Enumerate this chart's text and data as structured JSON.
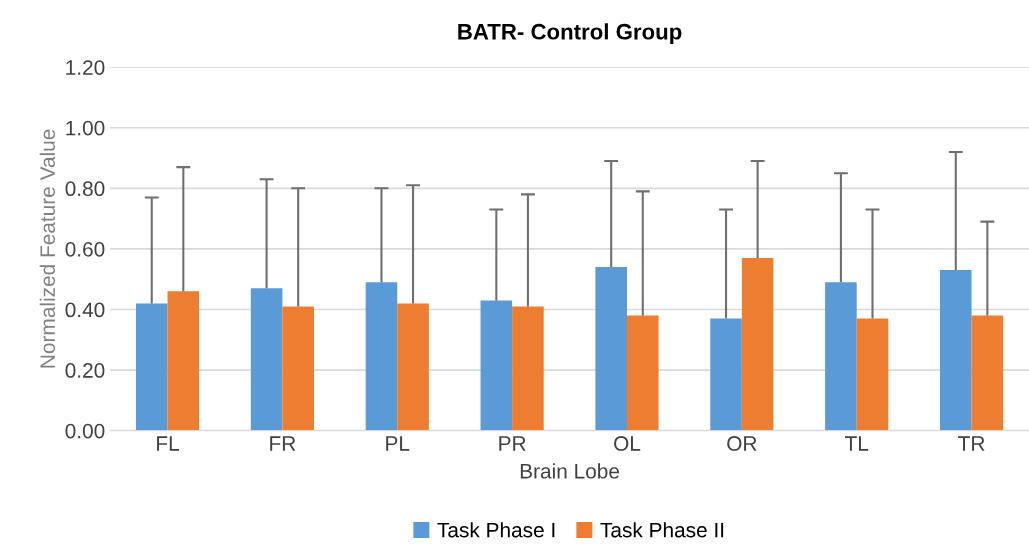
{
  "chart_data": {
    "type": "bar",
    "title": "BATR- Control Group",
    "xlabel": "Brain Lobe",
    "ylabel": "Normalized Feature Value",
    "categories": [
      "FL",
      "FR",
      "PL",
      "PR",
      "OL",
      "OR",
      "TL",
      "TR"
    ],
    "series": [
      {
        "name": "Task Phase I",
        "color": "#5b9bd5",
        "values": [
          0.42,
          0.47,
          0.49,
          0.43,
          0.54,
          0.37,
          0.49,
          0.53
        ],
        "errors": [
          [
            0.42,
            0.77
          ],
          [
            0.47,
            0.83
          ],
          [
            0.49,
            0.8
          ],
          [
            0.43,
            0.73
          ],
          [
            0.54,
            0.89
          ],
          [
            0.37,
            0.73
          ],
          [
            0.49,
            0.85
          ],
          [
            0.53,
            0.92
          ]
        ]
      },
      {
        "name": "Task Phase II",
        "color": "#ed7d31",
        "values": [
          0.46,
          0.41,
          0.42,
          0.41,
          0.38,
          0.57,
          0.37,
          0.38
        ],
        "errors": [
          [
            0.46,
            0.87
          ],
          [
            0.41,
            0.8
          ],
          [
            0.42,
            0.81
          ],
          [
            0.41,
            0.78
          ],
          [
            0.38,
            0.79
          ],
          [
            0.57,
            0.89
          ],
          [
            0.37,
            0.73
          ],
          [
            0.38,
            0.69
          ]
        ]
      }
    ],
    "ylim": [
      0,
      1.2
    ],
    "yticks": [
      {
        "value": 0,
        "label": "0.00"
      },
      {
        "value": 0.2,
        "label": "0.20"
      },
      {
        "value": 0.4,
        "label": "0.40"
      },
      {
        "value": 0.6,
        "label": "0.60"
      },
      {
        "value": 0.8,
        "label": "0.80"
      },
      {
        "value": 1.0,
        "label": "1.00"
      },
      {
        "value": 1.2,
        "label": "1.20"
      }
    ],
    "grid": "y",
    "legend": "bottom"
  }
}
